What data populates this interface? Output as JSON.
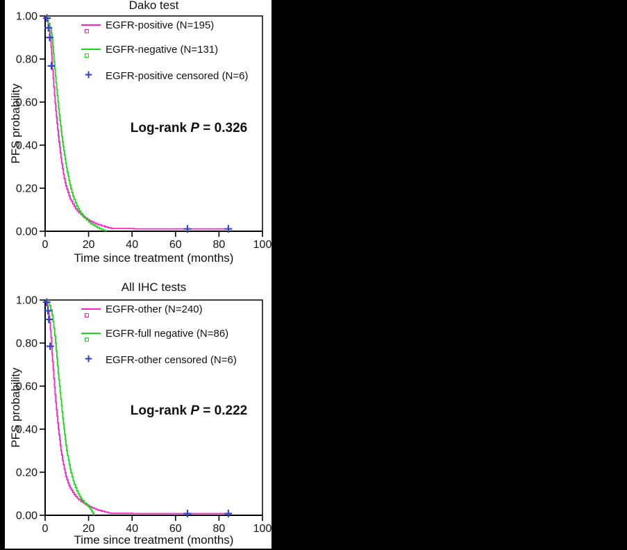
{
  "figure": {
    "background_color": "#000000",
    "panel_color": "#ffffff",
    "curve_colors": {
      "magenta": "#FF1DC8",
      "green": "#12DD12",
      "censored_blue": "#3344CC"
    }
  },
  "chart_data": [
    {
      "type": "line",
      "subtype": "kaplan-meier-step",
      "title": "Dako test",
      "xlabel": "Time since treatment (months)",
      "ylabel": "PFS probability",
      "xlim": [
        0,
        100
      ],
      "ylim": [
        0.0,
        1.0
      ],
      "xticks": [
        0,
        20,
        40,
        60,
        80,
        100
      ],
      "xtick_labels": [
        "0",
        "20",
        "40",
        "60",
        "80",
        "100"
      ],
      "yticks": [
        0.0,
        0.2,
        0.4,
        0.6,
        0.8,
        1.0
      ],
      "ytick_labels": [
        "0.00",
        "0.20",
        "0.40",
        "0.60",
        "0.80",
        "1.00"
      ],
      "grid": false,
      "legend_position": "inside-top-left",
      "annotation": {
        "prefix": "Log-rank",
        "p_symbol": "P",
        "value": "= 0.326"
      },
      "series": [
        {
          "name": "EGFR-positive (N=195)",
          "color": "#FF1DC8",
          "legend_marker": "line-open-square",
          "points": [
            [
              0,
              1
            ],
            [
              0.6,
              0.99
            ],
            [
              1,
              0.975
            ],
            [
              1.4,
              0.955
            ],
            [
              1.8,
              0.935
            ],
            [
              2.1,
              0.91
            ],
            [
              2.4,
              0.885
            ],
            [
              2.7,
              0.855
            ],
            [
              3,
              0.82
            ],
            [
              3.2,
              0.785
            ],
            [
              3.4,
              0.75
            ],
            [
              3.7,
              0.71
            ],
            [
              4,
              0.67
            ],
            [
              4.3,
              0.63
            ],
            [
              4.6,
              0.595
            ],
            [
              4.9,
              0.56
            ],
            [
              5.2,
              0.53
            ],
            [
              5.5,
              0.5
            ],
            [
              5.8,
              0.47
            ],
            [
              6.1,
              0.44
            ],
            [
              6.4,
              0.415
            ],
            [
              6.7,
              0.39
            ],
            [
              7,
              0.365
            ],
            [
              7.3,
              0.34
            ],
            [
              7.6,
              0.315
            ],
            [
              8,
              0.29
            ],
            [
              8.4,
              0.265
            ],
            [
              8.8,
              0.245
            ],
            [
              9.2,
              0.225
            ],
            [
              9.6,
              0.21
            ],
            [
              10,
              0.195
            ],
            [
              10.5,
              0.18
            ],
            [
              11,
              0.165
            ],
            [
              11.5,
              0.15
            ],
            [
              12,
              0.14
            ],
            [
              12.7,
              0.127
            ],
            [
              13.4,
              0.115
            ],
            [
              14.1,
              0.104
            ],
            [
              14.8,
              0.094
            ],
            [
              15.5,
              0.086
            ],
            [
              16.5,
              0.077
            ],
            [
              17.5,
              0.068
            ],
            [
              18.5,
              0.061
            ],
            [
              19.5,
              0.054
            ],
            [
              20.5,
              0.048
            ],
            [
              21.5,
              0.043
            ],
            [
              22.5,
              0.038
            ],
            [
              23.5,
              0.034
            ],
            [
              24.5,
              0.03
            ],
            [
              26,
              0.025
            ],
            [
              27.5,
              0.02
            ],
            [
              29,
              0.016
            ],
            [
              30.5,
              0.013
            ],
            [
              41,
              0.011
            ],
            [
              84.5,
              0.011
            ]
          ]
        },
        {
          "name": "EGFR-negative (N=131)",
          "color": "#12DD12",
          "legend_marker": "line-open-square",
          "points": [
            [
              0,
              1
            ],
            [
              0.8,
              0.985
            ],
            [
              1.5,
              0.965
            ],
            [
              2.2,
              0.945
            ],
            [
              2.8,
              0.92
            ],
            [
              3.2,
              0.89
            ],
            [
              3.5,
              0.86
            ],
            [
              3.8,
              0.825
            ],
            [
              4.1,
              0.79
            ],
            [
              4.4,
              0.755
            ],
            [
              4.7,
              0.72
            ],
            [
              5,
              0.69
            ],
            [
              5.3,
              0.66
            ],
            [
              5.6,
              0.63
            ],
            [
              5.9,
              0.6
            ],
            [
              6.2,
              0.57
            ],
            [
              6.5,
              0.54
            ],
            [
              6.8,
              0.515
            ],
            [
              7.1,
              0.49
            ],
            [
              7.4,
              0.465
            ],
            [
              7.7,
              0.44
            ],
            [
              8,
              0.415
            ],
            [
              8.3,
              0.395
            ],
            [
              8.6,
              0.375
            ],
            [
              8.9,
              0.355
            ],
            [
              9.2,
              0.335
            ],
            [
              9.5,
              0.315
            ],
            [
              9.8,
              0.295
            ],
            [
              10.2,
              0.275
            ],
            [
              10.6,
              0.255
            ],
            [
              11,
              0.235
            ],
            [
              11.4,
              0.215
            ],
            [
              11.8,
              0.198
            ],
            [
              12.3,
              0.18
            ],
            [
              12.8,
              0.163
            ],
            [
              13.3,
              0.148
            ],
            [
              13.9,
              0.133
            ],
            [
              14.5,
              0.118
            ],
            [
              15.1,
              0.105
            ],
            [
              15.7,
              0.094
            ],
            [
              16.4,
              0.083
            ],
            [
              17.2,
              0.072
            ],
            [
              18,
              0.062
            ],
            [
              19,
              0.052
            ],
            [
              20,
              0.043
            ],
            [
              21,
              0.035
            ],
            [
              22,
              0.029
            ],
            [
              23,
              0.023
            ],
            [
              24,
              0.017
            ],
            [
              25,
              0.012
            ],
            [
              26,
              0.008
            ],
            [
              27,
              0.004
            ],
            [
              28,
              0
            ]
          ]
        }
      ],
      "censored_series": {
        "name": "EGFR-positive censored (N=6)",
        "color": "#3344CC",
        "marker": "plus",
        "points": [
          [
            0.8,
            0.99
          ],
          [
            1.5,
            0.945
          ],
          [
            2.1,
            0.9
          ],
          [
            2.9,
            0.768
          ],
          [
            65.5,
            0.011
          ],
          [
            84.3,
            0.011
          ]
        ]
      }
    },
    {
      "type": "line",
      "subtype": "kaplan-meier-step",
      "title": "All IHC tests",
      "xlabel": "Time since treatment (months)",
      "ylabel": "PFS probability",
      "xlim": [
        0,
        100
      ],
      "ylim": [
        0.0,
        1.0
      ],
      "xticks": [
        0,
        20,
        40,
        60,
        80,
        100
      ],
      "xtick_labels": [
        "0",
        "20",
        "40",
        "60",
        "80",
        "100"
      ],
      "yticks": [
        0.0,
        0.2,
        0.4,
        0.6,
        0.8,
        1.0
      ],
      "ytick_labels": [
        "0.00",
        "0.20",
        "0.40",
        "0.60",
        "0.80",
        "1.00"
      ],
      "grid": false,
      "legend_position": "inside-top-left",
      "annotation": {
        "prefix": "Log-rank",
        "p_symbol": "P",
        "value": "= 0.222"
      },
      "series": [
        {
          "name": "EGFR-other (N=240)",
          "color": "#FF1DC8",
          "legend_marker": "line-open-square",
          "points": [
            [
              0,
              1
            ],
            [
              0.6,
              0.99
            ],
            [
              1,
              0.97
            ],
            [
              1.4,
              0.95
            ],
            [
              1.8,
              0.925
            ],
            [
              2.1,
              0.895
            ],
            [
              2.4,
              0.86
            ],
            [
              2.7,
              0.825
            ],
            [
              3,
              0.785
            ],
            [
              3.2,
              0.75
            ],
            [
              3.4,
              0.715
            ],
            [
              3.7,
              0.675
            ],
            [
              4,
              0.635
            ],
            [
              4.3,
              0.595
            ],
            [
              4.6,
              0.56
            ],
            [
              4.9,
              0.525
            ],
            [
              5.2,
              0.49
            ],
            [
              5.5,
              0.46
            ],
            [
              5.8,
              0.43
            ],
            [
              6.1,
              0.4
            ],
            [
              6.4,
              0.375
            ],
            [
              6.7,
              0.35
            ],
            [
              7,
              0.325
            ],
            [
              7.3,
              0.3
            ],
            [
              7.6,
              0.28
            ],
            [
              8,
              0.255
            ],
            [
              8.4,
              0.235
            ],
            [
              8.8,
              0.215
            ],
            [
              9.2,
              0.197
            ],
            [
              9.6,
              0.18
            ],
            [
              10,
              0.165
            ],
            [
              10.5,
              0.15
            ],
            [
              11,
              0.138
            ],
            [
              11.5,
              0.127
            ],
            [
              12,
              0.117
            ],
            [
              12.7,
              0.106
            ],
            [
              13.4,
              0.096
            ],
            [
              14.1,
              0.087
            ],
            [
              14.8,
              0.079
            ],
            [
              15.5,
              0.072
            ],
            [
              16.5,
              0.064
            ],
            [
              17.5,
              0.057
            ],
            [
              18.5,
              0.051
            ],
            [
              19.5,
              0.045
            ],
            [
              20.5,
              0.04
            ],
            [
              21.5,
              0.035
            ],
            [
              22.5,
              0.031
            ],
            [
              23.5,
              0.027
            ],
            [
              24.5,
              0.023
            ],
            [
              26,
              0.019
            ],
            [
              27.5,
              0.015
            ],
            [
              29,
              0.011
            ],
            [
              30.5,
              0.009
            ],
            [
              40.5,
              0.008
            ],
            [
              84.5,
              0.008
            ]
          ]
        },
        {
          "name": "EGFR-full negative (N=86)",
          "color": "#12DD12",
          "legend_marker": "line-open-square",
          "points": [
            [
              0,
              1
            ],
            [
              0.9,
              0.99
            ],
            [
              1.8,
              0.975
            ],
            [
              2.6,
              0.955
            ],
            [
              3.2,
              0.93
            ],
            [
              3.6,
              0.9
            ],
            [
              4,
              0.87
            ],
            [
              4.4,
              0.835
            ],
            [
              4.8,
              0.8
            ],
            [
              5.1,
              0.765
            ],
            [
              5.4,
              0.73
            ],
            [
              5.7,
              0.695
            ],
            [
              6,
              0.66
            ],
            [
              6.3,
              0.63
            ],
            [
              6.6,
              0.6
            ],
            [
              6.9,
              0.57
            ],
            [
              7.2,
              0.54
            ],
            [
              7.5,
              0.51
            ],
            [
              7.8,
              0.48
            ],
            [
              8.1,
              0.45
            ],
            [
              8.4,
              0.425
            ],
            [
              8.7,
              0.4
            ],
            [
              9,
              0.375
            ],
            [
              9.3,
              0.35
            ],
            [
              9.6,
              0.325
            ],
            [
              9.9,
              0.3
            ],
            [
              10.3,
              0.278
            ],
            [
              10.7,
              0.256
            ],
            [
              11.1,
              0.235
            ],
            [
              11.5,
              0.215
            ],
            [
              11.9,
              0.196
            ],
            [
              12.4,
              0.178
            ],
            [
              12.9,
              0.16
            ],
            [
              13.4,
              0.144
            ],
            [
              14,
              0.128
            ],
            [
              14.6,
              0.113
            ],
            [
              15.2,
              0.1
            ],
            [
              15.8,
              0.088
            ],
            [
              16.4,
              0.078
            ],
            [
              17,
              0.068
            ],
            [
              18,
              0.057
            ],
            [
              19,
              0.047
            ],
            [
              20,
              0.037
            ],
            [
              20.8,
              0.028
            ],
            [
              21.4,
              0.019
            ],
            [
              21.9,
              0.01
            ],
            [
              22.4,
              0
            ]
          ]
        }
      ],
      "censored_series": {
        "name": "EGFR-other censored (N=6)",
        "color": "#3344CC",
        "marker": "plus",
        "points": [
          [
            0.7,
            0.99
          ],
          [
            1.3,
            0.95
          ],
          [
            1.7,
            0.91
          ],
          [
            2.3,
            0.785
          ],
          [
            65.5,
            0.008
          ],
          [
            84.3,
            0.008
          ]
        ]
      }
    }
  ]
}
